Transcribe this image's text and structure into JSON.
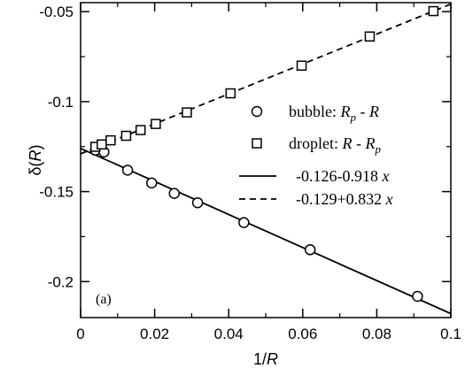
{
  "chart_data": {
    "type": "scatter",
    "panel_label": "(a)",
    "xlabel": "1/R",
    "ylabel": "δ(R)",
    "xlim": [
      0,
      0.1
    ],
    "ylim": [
      -0.22,
      -0.045
    ],
    "x_ticks": [
      {
        "value": 0,
        "label": "0"
      },
      {
        "value": 0.02,
        "label": "0.02"
      },
      {
        "value": 0.04,
        "label": "0.04"
      },
      {
        "value": 0.06,
        "label": "0.06"
      },
      {
        "value": 0.08,
        "label": "0.08"
      },
      {
        "value": 0.1,
        "label": "0.1"
      }
    ],
    "y_ticks": [
      {
        "value": -0.05,
        "label": "-0.05"
      },
      {
        "value": -0.1,
        "label": "-0.1"
      },
      {
        "value": -0.15,
        "label": "-0.15"
      },
      {
        "value": -0.2,
        "label": "-0.2"
      }
    ],
    "legend_position": "right",
    "series": [
      {
        "name": "bubble: R_p - R",
        "legend_label": {
          "prefix": "bubble: ",
          "var1": "R",
          "sub": "p",
          "suffix": " - ",
          "var2": "R"
        },
        "marker": "circle",
        "x": [
          0.004,
          0.0063,
          0.0127,
          0.0192,
          0.0253,
          0.0316,
          0.0441,
          0.062,
          0.091
        ],
        "y": [
          -0.127,
          -0.128,
          -0.1381,
          -0.1452,
          -0.151,
          -0.1562,
          -0.1672,
          -0.1823,
          -0.2082
        ]
      },
      {
        "name": "droplet: R - R_p",
        "legend_label": {
          "prefix": "droplet: ",
          "var1": "R",
          "mid": " - ",
          "var2": "R",
          "sub": "p"
        },
        "marker": "square",
        "x": [
          0.004,
          0.0057,
          0.0081,
          0.0123,
          0.0162,
          0.0203,
          0.0287,
          0.0405,
          0.0597,
          0.0781,
          0.0953
        ],
        "y": [
          -0.1251,
          -0.1238,
          -0.1215,
          -0.119,
          -0.1158,
          -0.1124,
          -0.106,
          -0.0954,
          -0.08,
          -0.0638,
          -0.0497
        ]
      }
    ],
    "fits": [
      {
        "label_expr": "-0.126-0.918",
        "var": "x",
        "style": "solid",
        "intercept": -0.126,
        "slope": -0.918
      },
      {
        "label_expr": "-0.129+0.832",
        "var": "x",
        "style": "dashed",
        "intercept": -0.129,
        "slope": 0.832
      }
    ]
  }
}
